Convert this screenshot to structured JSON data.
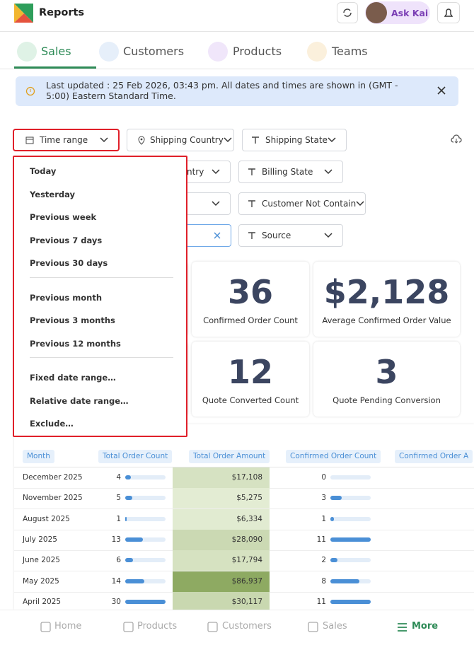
{
  "header": {
    "title": "Reports",
    "assistant": "Ask Kai"
  },
  "tabs": [
    "Sales",
    "Customers",
    "Products",
    "Teams"
  ],
  "banner": "Last updated : 25 Feb 2026, 03:43 pm. All dates and times are shown in (GMT - 5:00) Eastern Standard Time.",
  "filters": {
    "row1": [
      "Time range",
      "Shipping Country",
      "Shipping State"
    ],
    "row2": [
      "ntry",
      "Billing State"
    ],
    "row3": [
      "Customer Not Contain"
    ],
    "row4": [
      "Source"
    ]
  },
  "dropdown": [
    [
      "Today",
      "Yesterday",
      "Previous week",
      "Previous 7 days",
      "Previous 30 days"
    ],
    [
      "Previous month",
      "Previous 3 months",
      "Previous 12 months"
    ],
    [
      "Fixed date range…",
      "Relative date range…",
      "Exclude…"
    ]
  ],
  "kpis": [
    {
      "value": "36",
      "label": "Confirmed Order Count"
    },
    {
      "value": "$2,128",
      "label": "Average Confirmed Order Value"
    },
    {
      "value": "12",
      "label": "Quote Converted Count"
    },
    {
      "value": "3",
      "label": "Quote Pending Conversion"
    }
  ],
  "table": {
    "columns": [
      "Month",
      "Total Order Count",
      "Total Order Amount",
      "Confirmed Order Count",
      "Confirmed Order A"
    ],
    "rows": [
      [
        "December 2025",
        4,
        "$17,108",
        0
      ],
      [
        "November 2025",
        5,
        "$5,275",
        3
      ],
      [
        "August 2025",
        1,
        "$6,334",
        1
      ],
      [
        "July 2025",
        13,
        "$28,090",
        11
      ],
      [
        "June 2025",
        6,
        "$17,794",
        2
      ],
      [
        "May 2025",
        14,
        "$86,937",
        8
      ],
      [
        "April 2025",
        30,
        "$30,117",
        11
      ]
    ]
  },
  "nav": [
    "Home",
    "Products",
    "Customers",
    "Sales",
    "More"
  ]
}
